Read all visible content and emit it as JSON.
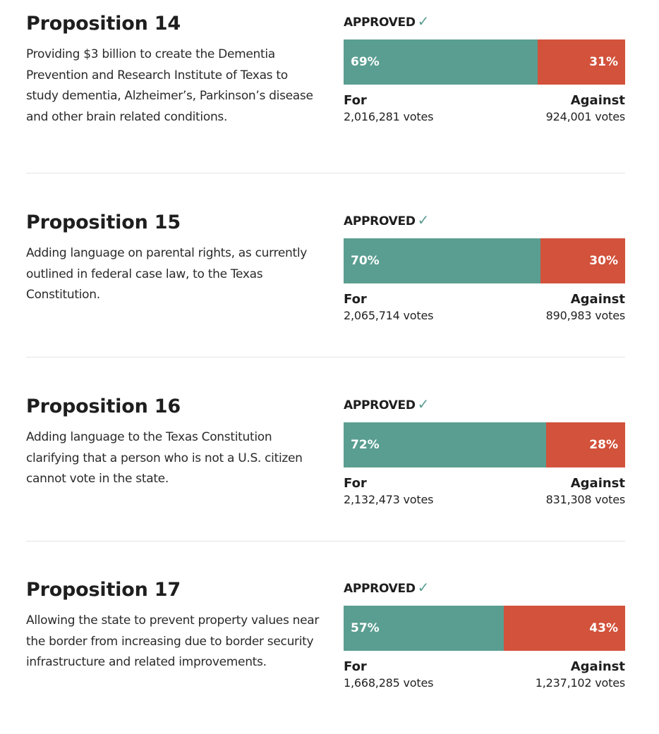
{
  "colors": {
    "for": "#5a9e91",
    "against": "#d2523b",
    "check": "#5a9e91"
  },
  "labels": {
    "for": "For",
    "against": "Against",
    "votes_suffix": "votes"
  },
  "propositions": [
    {
      "title": "Proposition 14",
      "description": "Providing $3 billion to create the Dementia Prevention and Research Institute of Texas to study dementia, Alzheimer’s, Parkinson’s disease and other brain related conditions.",
      "status": "APPROVED",
      "status_icon": "checkmark-icon",
      "for_pct": 69,
      "against_pct": 31,
      "for_pct_label": "69%",
      "against_pct_label": "31%",
      "for_votes": "2,016,281 votes",
      "against_votes": "924,001 votes"
    },
    {
      "title": "Proposition 15",
      "description": "Adding language on parental rights, as currently outlined in federal case law, to the Texas Constitution.",
      "status": "APPROVED",
      "status_icon": "checkmark-icon",
      "for_pct": 70,
      "against_pct": 30,
      "for_pct_label": "70%",
      "against_pct_label": "30%",
      "for_votes": "2,065,714 votes",
      "against_votes": "890,983 votes"
    },
    {
      "title": "Proposition 16",
      "description": "Adding language to the Texas Constitution clarifying that a person who is not a U.S. citizen cannot vote in the state.",
      "status": "APPROVED",
      "status_icon": "checkmark-icon",
      "for_pct": 72,
      "against_pct": 28,
      "for_pct_label": "72%",
      "against_pct_label": "28%",
      "for_votes": "2,132,473 votes",
      "against_votes": "831,308 votes"
    },
    {
      "title": "Proposition 17",
      "description": "Allowing the state to prevent property values near the border from increasing due to border security infrastructure and related improvements.",
      "status": "APPROVED",
      "status_icon": "checkmark-icon",
      "for_pct": 57,
      "against_pct": 43,
      "for_pct_label": "57%",
      "against_pct_label": "43%",
      "for_votes": "1,668,285 votes",
      "against_votes": "1,237,102 votes"
    }
  ],
  "chart_data": {
    "type": "bar",
    "orientation": "horizontal-stacked",
    "title": "",
    "categories": [
      "Proposition 14",
      "Proposition 15",
      "Proposition 16",
      "Proposition 17"
    ],
    "series": [
      {
        "name": "For",
        "values": [
          69,
          70,
          72,
          57
        ],
        "votes": [
          2016281,
          2065714,
          2132473,
          1668285
        ]
      },
      {
        "name": "Against",
        "values": [
          31,
          30,
          28,
          43
        ],
        "votes": [
          924001,
          890983,
          831308,
          1237102
        ]
      }
    ],
    "unit": "%",
    "xlim": [
      0,
      100
    ],
    "grid": false,
    "legend": "none"
  }
}
